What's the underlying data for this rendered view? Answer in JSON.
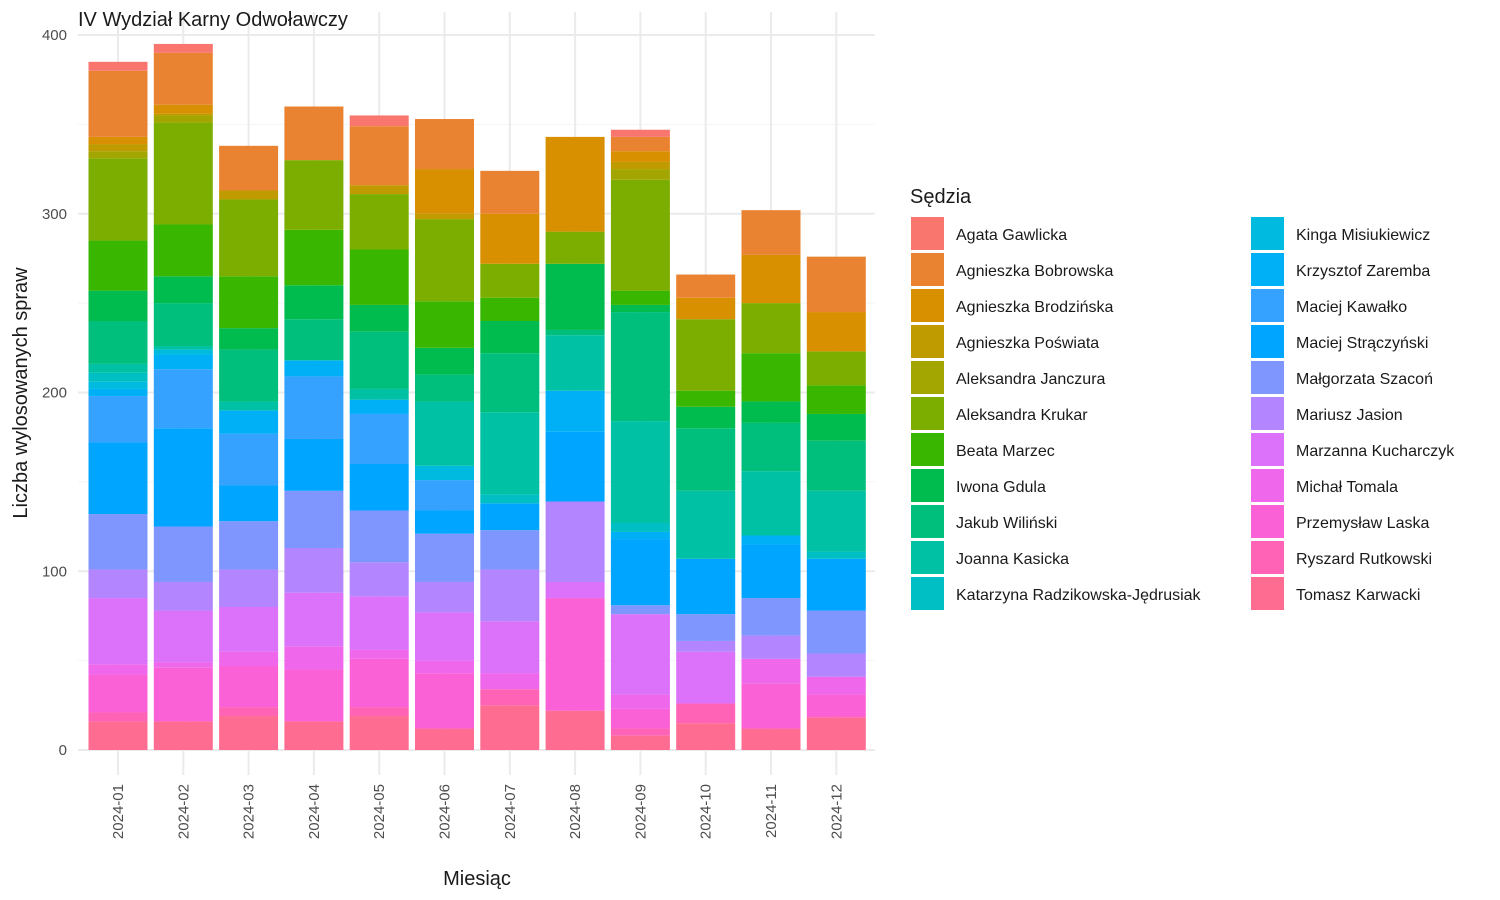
{
  "chart_data": {
    "type": "bar",
    "stacked": true,
    "title": "IV Wydział Karny Odwoławczy",
    "xlabel": "Miesiąc",
    "ylabel": "Liczba wylosowanych spraw",
    "ylim": [
      0,
      400
    ],
    "yticks": [
      0,
      100,
      200,
      300,
      400
    ],
    "grid": true,
    "legend_title": "Sędzia",
    "legend_position": "right",
    "categories": [
      "2024-01",
      "2024-02",
      "2024-03",
      "2024-04",
      "2024-05",
      "2024-06",
      "2024-07",
      "2024-08",
      "2024-09",
      "2024-10",
      "2024-11",
      "2024-12"
    ],
    "series": [
      {
        "name": "Agata Gawlicka",
        "color": "#F8766D",
        "values": [
          5,
          5,
          0,
          0,
          6,
          0,
          0,
          0,
          4,
          0,
          0,
          0
        ]
      },
      {
        "name": "Agnieszka Bobrowska",
        "color": "#EA8331",
        "values": [
          37,
          29,
          25,
          30,
          33,
          28,
          24,
          0,
          8,
          13,
          25,
          31
        ]
      },
      {
        "name": "Agnieszka Brodzińska",
        "color": "#D89000",
        "values": [
          4,
          5,
          0,
          0,
          0,
          25,
          28,
          53,
          6,
          12,
          27,
          22
        ]
      },
      {
        "name": "Agnieszka Poświata",
        "color": "#C09B00",
        "values": [
          4,
          1,
          5,
          0,
          5,
          3,
          0,
          0,
          4,
          0,
          0,
          0
        ]
      },
      {
        "name": "Aleksandra Janczura",
        "color": "#A3A500",
        "values": [
          4,
          4,
          0,
          0,
          0,
          0,
          0,
          0,
          6,
          0,
          0,
          0
        ]
      },
      {
        "name": "Aleksandra Krukar",
        "color": "#7CAE00",
        "values": [
          46,
          57,
          43,
          39,
          31,
          46,
          19,
          18,
          62,
          40,
          28,
          19
        ]
      },
      {
        "name": "Beata Marzec",
        "color": "#39B600",
        "values": [
          28,
          29,
          29,
          31,
          31,
          26,
          13,
          0,
          8,
          9,
          27,
          16
        ]
      },
      {
        "name": "Iwona Gdula",
        "color": "#00BB4E",
        "values": [
          17,
          15,
          12,
          19,
          15,
          15,
          18,
          37,
          4,
          12,
          12,
          15
        ]
      },
      {
        "name": "Jakub Wiliński",
        "color": "#00BF7D",
        "values": [
          24,
          24,
          29,
          23,
          32,
          15,
          33,
          3,
          61,
          35,
          27,
          28
        ]
      },
      {
        "name": "Joanna Kasicka",
        "color": "#00C1A3",
        "values": [
          5,
          2,
          5,
          0,
          6,
          36,
          46,
          31,
          57,
          38,
          36,
          34
        ]
      },
      {
        "name": "Katarzyna Radzikowska-Jędrusiak",
        "color": "#00BFC4",
        "values": [
          5,
          0,
          0,
          0,
          0,
          0,
          5,
          0,
          5,
          0,
          0,
          4
        ]
      },
      {
        "name": "Kinga Misiukiewicz",
        "color": "#00BAE0",
        "values": [
          4,
          3,
          0,
          0,
          0,
          8,
          0,
          0,
          0,
          0,
          0,
          0
        ]
      },
      {
        "name": "Krzysztof Zaremba",
        "color": "#00B0F6",
        "values": [
          4,
          8,
          13,
          9,
          8,
          0,
          0,
          23,
          4,
          0,
          5,
          0
        ]
      },
      {
        "name": "Maciej Kawałko",
        "color": "#35A2FF",
        "values": [
          26,
          33,
          29,
          35,
          28,
          17,
          0,
          0,
          0,
          0,
          0,
          0
        ]
      },
      {
        "name": "Maciej Strączyński",
        "color": "#00A5FF",
        "values": [
          40,
          55,
          20,
          29,
          26,
          13,
          15,
          39,
          37,
          31,
          30,
          29
        ]
      },
      {
        "name": "Małgorzata Szacoń",
        "color": "#7F96FF",
        "values": [
          31,
          31,
          27,
          32,
          29,
          27,
          22,
          0,
          5,
          15,
          21,
          24
        ]
      },
      {
        "name": "Mariusz Jasion",
        "color": "#B385FF",
        "values": [
          16,
          16,
          21,
          25,
          19,
          17,
          29,
          45,
          0,
          6,
          13,
          13
        ]
      },
      {
        "name": "Marzanna Kucharczyk",
        "color": "#DC71FA",
        "values": [
          37,
          29,
          25,
          30,
          30,
          27,
          29,
          9,
          45,
          29,
          0,
          0
        ]
      },
      {
        "name": "Michał Tomala",
        "color": "#EF67EB",
        "values": [
          6,
          3,
          8,
          13,
          5,
          7,
          9,
          0,
          8,
          0,
          14,
          10
        ]
      },
      {
        "name": "Przemysław Laska",
        "color": "#FB61D7",
        "values": [
          21,
          30,
          23,
          29,
          27,
          31,
          0,
          63,
          11,
          0,
          25,
          12
        ]
      },
      {
        "name": "Ryszard Rutkowski",
        "color": "#FF63B6",
        "values": [
          5,
          0,
          5,
          0,
          5,
          0,
          9,
          0,
          4,
          11,
          0,
          1
        ]
      },
      {
        "name": "Tomasz Karwacki",
        "color": "#FF6C91",
        "values": [
          16,
          16,
          19,
          16,
          19,
          12,
          25,
          22,
          8,
          15,
          12,
          18
        ]
      }
    ]
  }
}
